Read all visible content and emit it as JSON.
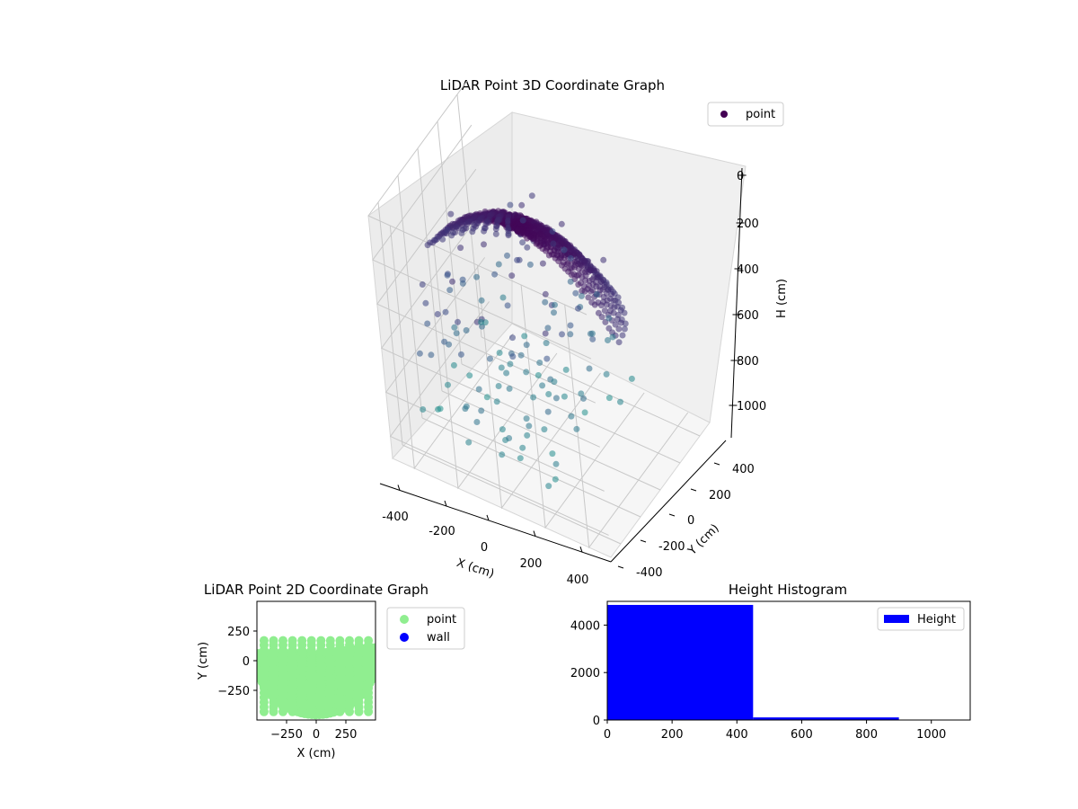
{
  "chart_data": [
    {
      "type": "scatter",
      "projection": "3d",
      "title": "LiDAR Point 3D Coordinate Graph",
      "xlabel": "X (cm)",
      "ylabel": "Y (cm)",
      "zlabel": "H (cm)",
      "xlim": [
        -500,
        500
      ],
      "ylim": [
        -500,
        500
      ],
      "zlim": [
        0,
        1100
      ],
      "zaxis_inverted": true,
      "xticks": [
        "-400",
        "-200",
        "0",
        "200",
        "400"
      ],
      "yticks": [
        "-400",
        "-200",
        "0",
        "200",
        "400"
      ],
      "zticks": [
        "0",
        "200",
        "400",
        "600",
        "800",
        "1000"
      ],
      "legend": {
        "labels": [
          "point"
        ],
        "position": "upper right"
      },
      "colormap": "viridis",
      "grid": true
    },
    {
      "type": "scatter",
      "title": "LiDAR Point 2D Coordinate Graph",
      "xlabel": "X (cm)",
      "ylabel": "Y (cm)",
      "xlim": [
        -500,
        500
      ],
      "ylim": [
        -500,
        500
      ],
      "xticks": [
        "−250",
        "0",
        "250"
      ],
      "yticks": [
        "250",
        "0",
        "−250"
      ],
      "series": [
        {
          "name": "point",
          "color": "#90ee90"
        },
        {
          "name": "wall",
          "color": "#0000ff"
        }
      ],
      "legend": {
        "position": "outside right"
      }
    },
    {
      "type": "bar",
      "title": "Height Histogram",
      "bins": [
        [
          0,
          450
        ],
        [
          450,
          900
        ],
        [
          900,
          1100
        ]
      ],
      "values": [
        4850,
        110,
        0
      ],
      "xlim": [
        0,
        1120
      ],
      "ylim": [
        0,
        5000
      ],
      "xticks": [
        "0",
        "200",
        "400",
        "600",
        "800",
        "1000"
      ],
      "yticks": [
        "0",
        "2000",
        "4000"
      ],
      "series": [
        {
          "name": "Height",
          "color": "#0000ff"
        }
      ],
      "legend": {
        "position": "upper right"
      }
    }
  ]
}
